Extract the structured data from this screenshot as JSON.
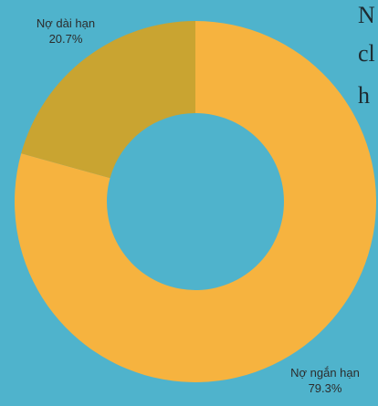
{
  "chart_data": {
    "type": "pie",
    "style": "donut",
    "title": "",
    "slices": [
      {
        "label": "Nợ ngắn hạn",
        "value": 79.3,
        "value_label": "79.3%",
        "color": "#f6b33f"
      },
      {
        "label": "Nợ dài hạn",
        "value": 20.7,
        "value_label": "20.7%",
        "color": "#c9a431"
      }
    ],
    "legend": "none",
    "background": "#4fb3cc"
  },
  "side_text": [
    "N",
    "cl",
    "h"
  ]
}
